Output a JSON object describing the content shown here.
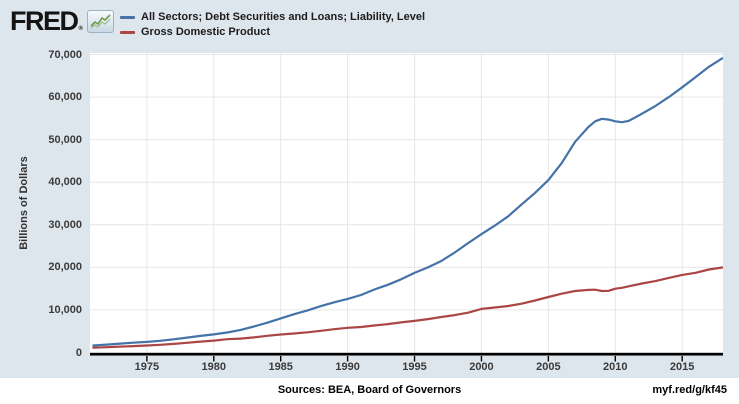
{
  "header": {
    "brand": "FRED",
    "brand_reg": "®"
  },
  "legend": {
    "items": [
      {
        "label": "All Sectors; Debt Securities and Loans; Liability, Level",
        "color": "#4572a7"
      },
      {
        "label": "Gross Domestic Product",
        "color": "#aa4643"
      }
    ]
  },
  "footer": {
    "sources": "Sources: BEA, Board of Governors",
    "permalink": "myf.red/g/kf45"
  },
  "colors": {
    "background": "#dee6ed",
    "plot_background": "#ffffff",
    "gridline": "#e6e6e6",
    "axis_line": "#000000",
    "debt_line": "#4572a7",
    "gdp_line": "#aa4643"
  },
  "chart_data": {
    "type": "line",
    "title": "",
    "xlabel": "",
    "ylabel": "Billions of Dollars",
    "grid": true,
    "legend_position": "top-left",
    "xlim": [
      1970.75,
      2018.05
    ],
    "ylim": [
      0,
      70000
    ],
    "x_ticks": [
      {
        "value": 1975,
        "label": "1975"
      },
      {
        "value": 1980,
        "label": "1980"
      },
      {
        "value": 1985,
        "label": "1985"
      },
      {
        "value": 1990,
        "label": "1990"
      },
      {
        "value": 1995,
        "label": "1995"
      },
      {
        "value": 2000,
        "label": "2000"
      },
      {
        "value": 2005,
        "label": "2005"
      },
      {
        "value": 2010,
        "label": "2010"
      },
      {
        "value": 2015,
        "label": "2015"
      }
    ],
    "y_ticks": [
      {
        "value": 0,
        "label": "0"
      },
      {
        "value": 10000,
        "label": "10,000"
      },
      {
        "value": 20000,
        "label": "20,000"
      },
      {
        "value": 30000,
        "label": "30,000"
      },
      {
        "value": 40000,
        "label": "40,000"
      },
      {
        "value": 50000,
        "label": "50,000"
      },
      {
        "value": 60000,
        "label": "60,000"
      },
      {
        "value": 70000,
        "label": "70,000"
      }
    ],
    "x": [
      1971,
      1972,
      1973,
      1974,
      1975,
      1976,
      1977,
      1978,
      1979,
      1980,
      1981,
      1982,
      1983,
      1984,
      1985,
      1986,
      1987,
      1988,
      1989,
      1990,
      1991,
      1992,
      1993,
      1994,
      1995,
      1996,
      1997,
      1998,
      1999,
      2000,
      2001,
      2002,
      2003,
      2004,
      2005,
      2006,
      2007,
      2008,
      2008.5,
      2009,
      2009.5,
      2010,
      2010.5,
      2011,
      2012,
      2013,
      2014,
      2015,
      2016,
      2017,
      2018
    ],
    "series": [
      {
        "name": "All Sectors; Debt Securities and Loans; Liability, Level",
        "color": "#4572a7",
        "values": [
          1650,
          1850,
          2100,
          2300,
          2500,
          2750,
          3100,
          3500,
          3900,
          4250,
          4700,
          5300,
          6100,
          7000,
          8000,
          9000,
          9900,
          10900,
          11800,
          12600,
          13500,
          14800,
          15900,
          17200,
          18700,
          20000,
          21500,
          23500,
          25700,
          27800,
          29800,
          32000,
          34800,
          37500,
          40500,
          44500,
          49500,
          53000,
          54300,
          54900,
          54700,
          54300,
          54100,
          54400,
          56100,
          57900,
          60000,
          62300,
          64700,
          67100,
          69100
        ]
      },
      {
        "name": "Gross Domestic Product",
        "color": "#aa4643",
        "values": [
          1130,
          1240,
          1380,
          1500,
          1640,
          1820,
          2030,
          2290,
          2560,
          2790,
          3130,
          3260,
          3540,
          3930,
          4220,
          4460,
          4740,
          5100,
          5480,
          5800,
          5990,
          6340,
          6670,
          7080,
          7420,
          7840,
          8330,
          8790,
          9340,
          10250,
          10580,
          10930,
          11460,
          12210,
          13040,
          13820,
          14450,
          14710,
          14750,
          14450,
          14500,
          14990,
          15200,
          15540,
          16200,
          16780,
          17520,
          18220,
          18710,
          19490,
          19960
        ]
      }
    ]
  }
}
